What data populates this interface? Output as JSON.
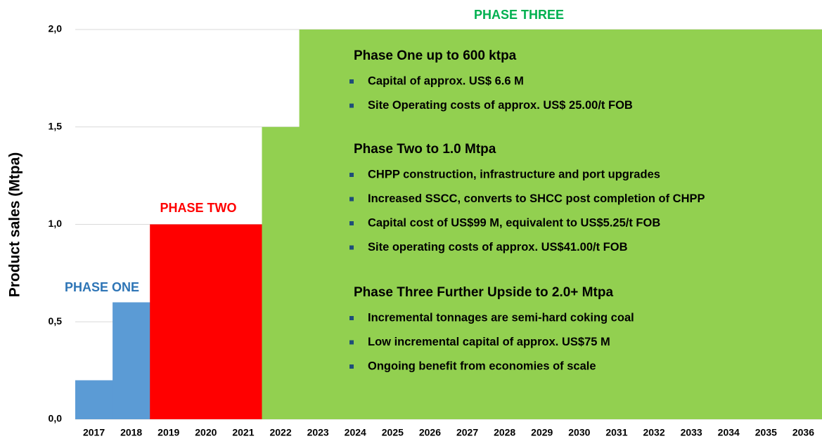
{
  "chart_data": {
    "type": "bar",
    "y_label": "Product sales (Mtpa)",
    "categories": [
      "2017",
      "2018",
      "2019",
      "2020",
      "2021",
      "2022",
      "2023",
      "2024",
      "2025",
      "2026",
      "2027",
      "2028",
      "2029",
      "2030",
      "2031",
      "2032",
      "2033",
      "2034",
      "2035",
      "2036"
    ],
    "values": [
      0.2,
      0.6,
      1.0,
      1.0,
      1.0,
      1.5,
      2.0,
      2.0,
      2.0,
      2.0,
      2.0,
      2.0,
      2.0,
      2.0,
      2.0,
      2.0,
      2.0,
      2.0,
      2.0,
      2.0
    ],
    "colors": [
      "#5b9bd5",
      "#5b9bd5",
      "#ff0000",
      "#ff0000",
      "#ff0000",
      "#92d050",
      "#92d050",
      "#92d050",
      "#92d050",
      "#92d050",
      "#92d050",
      "#92d050",
      "#92d050",
      "#92d050",
      "#92d050",
      "#92d050",
      "#92d050",
      "#92d050",
      "#92d050",
      "#92d050"
    ],
    "ylim": [
      0,
      2.0
    ],
    "yticks": [
      {
        "value": 0,
        "label": "0,0"
      },
      {
        "value": 0.5,
        "label": "0,5"
      },
      {
        "value": 1.0,
        "label": "1,0"
      },
      {
        "value": 1.5,
        "label": "1,5"
      },
      {
        "value": 2.0,
        "label": "2,0"
      }
    ],
    "grid": true,
    "annotations": [
      {
        "text": "PHASE ONE",
        "color": "#2e75b6"
      },
      {
        "text": "PHASE TWO",
        "color": "#ff0000"
      },
      {
        "text": "PHASE THREE",
        "color": "#00b050"
      }
    ],
    "notes": [
      {
        "heading": "Phase One up to 600 ktpa",
        "bullets": [
          "Capital of approx. US$ 6.6 M",
          "Site Operating costs of approx. US$ 25.00/t FOB"
        ]
      },
      {
        "heading": "Phase Two to 1.0 Mtpa",
        "bullets": [
          "CHPP construction, infrastructure and port upgrades",
          "Increased SSCC, converts to SHCC post completion of CHPP",
          "Capital cost of US$99 M, equivalent to US$5.25/t FOB",
          "Site operating costs of approx. US$41.00/t FOB"
        ]
      },
      {
        "heading": "Phase Three Further Upside to 2.0+ Mtpa",
        "bullets": [
          "Incremental tonnages are semi-hard coking coal",
          "Low incremental capital of approx. US$75 M",
          "Ongoing benefit from economies of scale"
        ]
      }
    ]
  }
}
